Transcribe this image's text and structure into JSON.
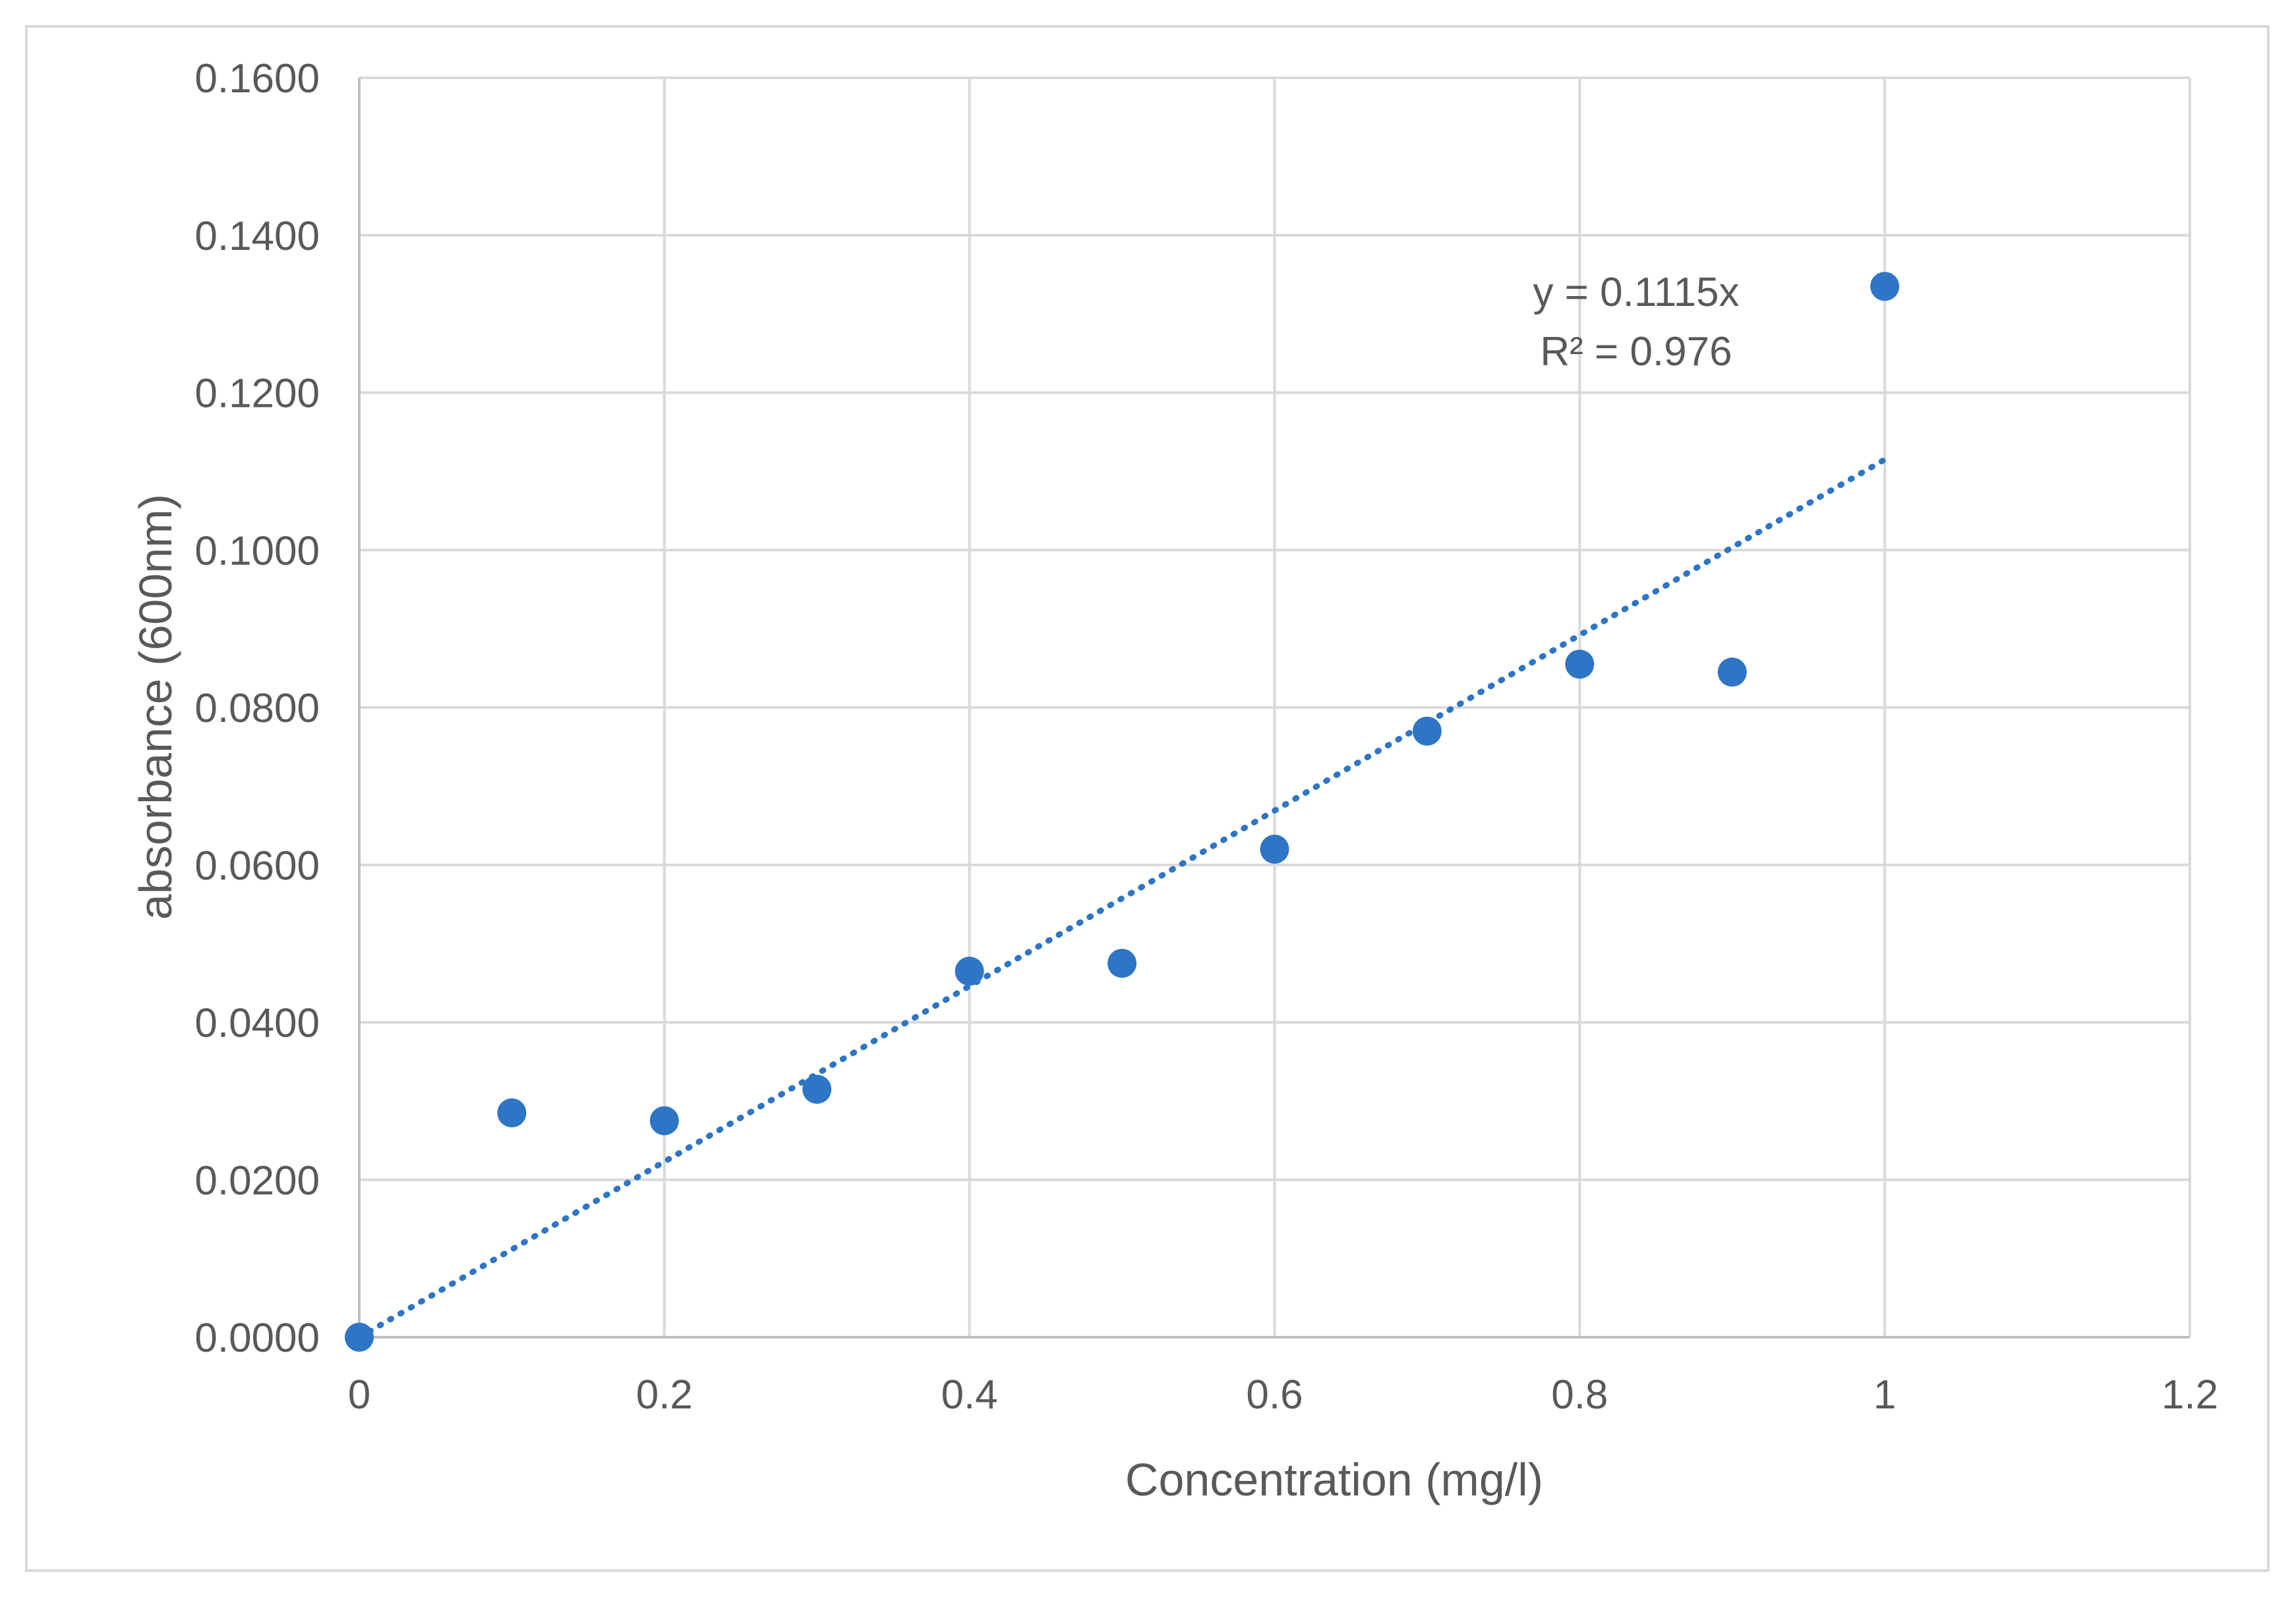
{
  "chart_data": {
    "type": "scatter",
    "title": "",
    "xlabel": "Concentration (mg/l)",
    "ylabel": "absorbance (600nm)",
    "xlim": [
      0,
      1.2
    ],
    "ylim": [
      0,
      0.16
    ],
    "x_ticks": [
      "0",
      "0.2",
      "0.4",
      "0.6",
      "0.8",
      "1",
      "1.2"
    ],
    "x_tick_values": [
      0,
      0.2,
      0.4,
      0.6,
      0.8,
      1.0,
      1.2
    ],
    "y_ticks": [
      "0.0000",
      "0.0200",
      "0.0400",
      "0.0600",
      "0.0800",
      "0.1000",
      "0.1200",
      "0.1400",
      "0.1600"
    ],
    "y_tick_values": [
      0,
      0.02,
      0.04,
      0.06,
      0.08,
      0.1,
      0.12,
      0.14,
      0.16
    ],
    "grid": true,
    "legend": "none",
    "series": [
      {
        "name": "absorbance",
        "color": "#2e75c6",
        "x": [
          0,
          0.1,
          0.2,
          0.3,
          0.4,
          0.5,
          0.6,
          0.7,
          0.8,
          0.9,
          1.0
        ],
        "y": [
          0.0,
          0.0285,
          0.0275,
          0.0315,
          0.0465,
          0.0475,
          0.062,
          0.077,
          0.0855,
          0.0845,
          0.1335
        ]
      }
    ],
    "trendline": {
      "type": "linear",
      "slope": 0.1115,
      "intercept": 0,
      "x_range": [
        0,
        1.0
      ],
      "style": "dotted",
      "color": "#2e75c6",
      "equation_label": "y = 0.1115x",
      "r2_label": "R² = 0.976"
    }
  }
}
